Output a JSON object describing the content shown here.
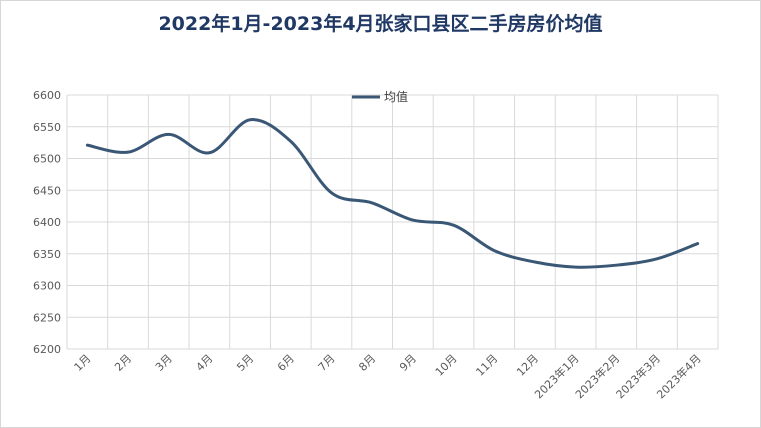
{
  "chart_data": {
    "type": "line",
    "title": "2022年1月-2023年4月张家口县区二手房房价均值",
    "categories": [
      "1月",
      "2月",
      "3月",
      "4月",
      "5月",
      "6月",
      "7月",
      "8月",
      "9月",
      "10月",
      "11月",
      "12月",
      "2023年1月",
      "2023年2月",
      "2023年3月",
      "2023年4月"
    ],
    "series": [
      {
        "name": "均值",
        "values": [
          6521,
          6510,
          6538,
          6509,
          6561,
          6527,
          6446,
          6430,
          6403,
          6395,
          6355,
          6337,
          6329,
          6332,
          6342,
          6366
        ]
      }
    ],
    "ylim": [
      6200,
      6600
    ],
    "yticks": [
      6200,
      6250,
      6300,
      6350,
      6400,
      6450,
      6500,
      6550,
      6600
    ],
    "grid": true,
    "legend_position": "top-center",
    "colors": {
      "series": "#3a5775",
      "title": "#1f3864",
      "grid": "#d9d9d9"
    }
  }
}
